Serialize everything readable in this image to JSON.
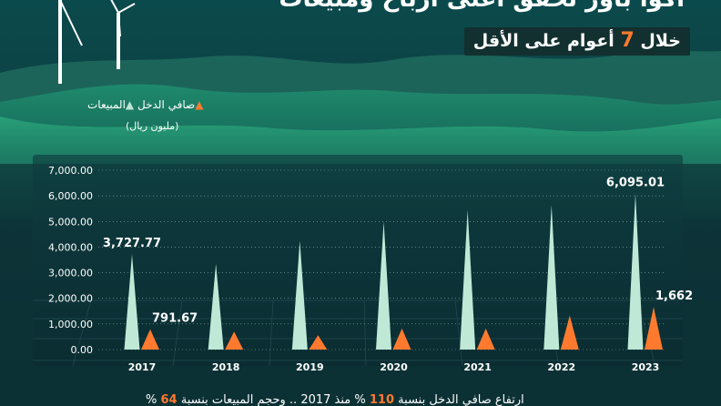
{
  "header": {
    "headline": "أكوا باور تحقق أعلى أرباح ومبيعات",
    "subtitle_prefix": "خلال",
    "subtitle_number": "7",
    "subtitle_suffix": "أعوام على الأقل"
  },
  "legend": {
    "net_income_label": "صافي الدخل",
    "sales_label": "المبيعات",
    "unit": "(مليون ريال)"
  },
  "footer": {
    "text_a": "ارتفاع صافي الدخل بنسبة",
    "number_a": "110",
    "text_b": "% منذ 2017 .. وحجم المبيعات بنسبة",
    "number_b": "64",
    "text_c": "%"
  },
  "colors": {
    "sales": "#bfe8d6",
    "net_income": "#ff7a2f",
    "text": "#ffffff"
  },
  "chart_data": {
    "type": "bar",
    "categories": [
      "2017",
      "2018",
      "2019",
      "2020",
      "2021",
      "2022",
      "2023"
    ],
    "series": [
      {
        "name": "المبيعات",
        "values": [
          3727.77,
          3350,
          4250,
          5000,
          5450,
          5650,
          6095.01
        ]
      },
      {
        "name": "صافي الدخل",
        "values": [
          791.67,
          700,
          560,
          820,
          820,
          1330,
          1662
        ]
      }
    ],
    "data_labels": [
      {
        "series": 0,
        "index": 0,
        "text": "3,727.77"
      },
      {
        "series": 1,
        "index": 0,
        "text": "791.67"
      },
      {
        "series": 0,
        "index": 6,
        "text": "6,095.01"
      },
      {
        "series": 1,
        "index": 6,
        "text": "1,662"
      }
    ],
    "yticks": [
      "0.00",
      "1,000.00",
      "2,000.00",
      "3,000.00",
      "4,000.00",
      "5,000.00",
      "6,000.00",
      "7,000.00"
    ],
    "ylim": [
      0,
      7000
    ],
    "grid": true,
    "bar_shape": "triangle"
  }
}
